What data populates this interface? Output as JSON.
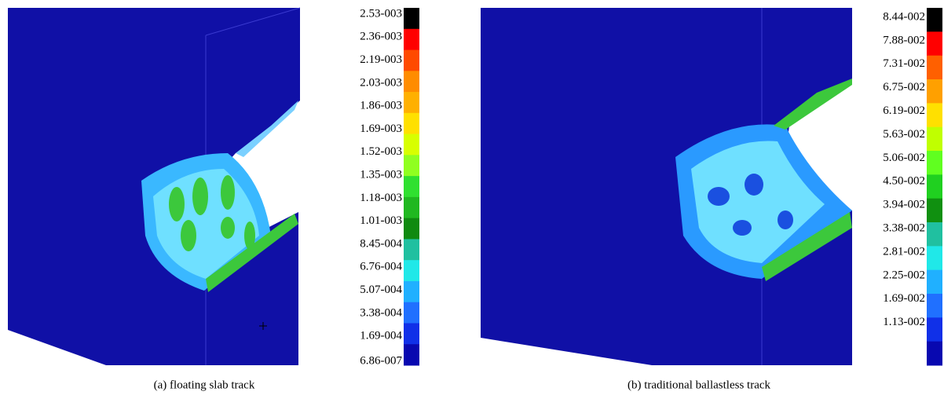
{
  "panels": [
    {
      "caption": "(a) floating slab track",
      "colorbar": [
        "2.53-003",
        "2.36-003",
        "2.19-003",
        "2.03-003",
        "1.86-003",
        "1.69-003",
        "1.52-003",
        "1.35-003",
        "1.18-003",
        "1.01-003",
        "8.45-004",
        "6.76-004",
        "5.07-004",
        "3.38-004",
        "1.69-004",
        "6.86-007"
      ]
    },
    {
      "caption": "(b) traditional ballastless track",
      "colorbar": [
        "8.44-002",
        "7.88-002",
        "7.31-002",
        "6.75-002",
        "6.19-002",
        "5.63-002",
        "5.06-002",
        "4.50-002",
        "3.94-002",
        "3.38-002",
        "2.81-002",
        "2.25-002",
        "1.69-002",
        "1.13-002"
      ]
    }
  ]
}
